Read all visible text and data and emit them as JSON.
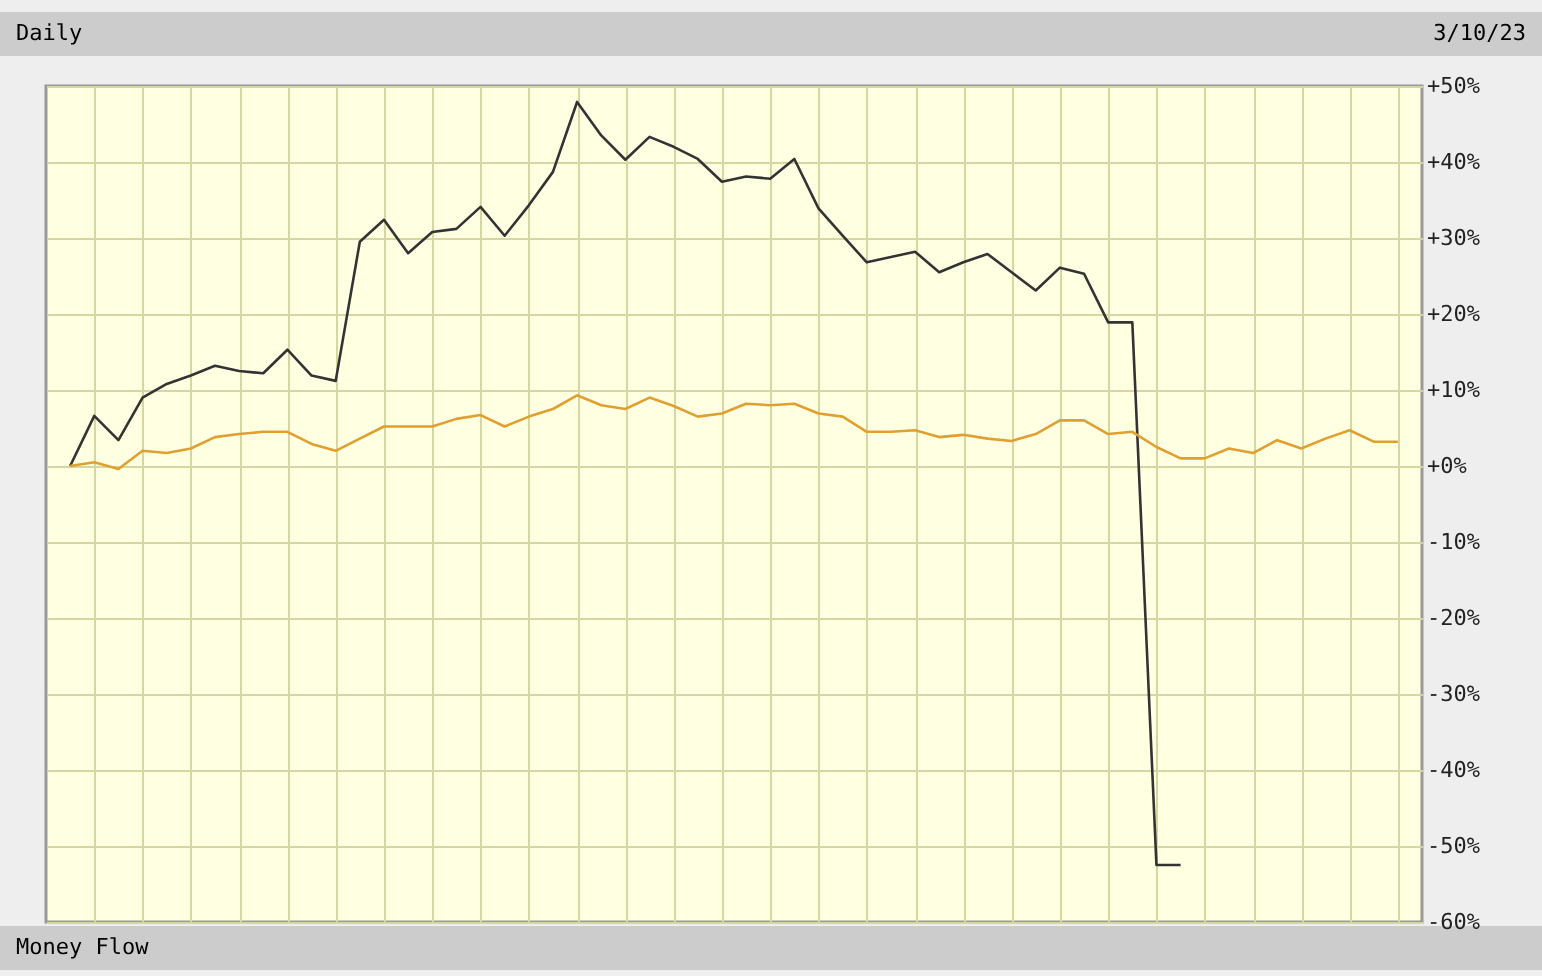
{
  "chart_data": {
    "type": "line",
    "title": "Daily",
    "annotations": [
      "3/10/23",
      "Money Flow"
    ],
    "categories": [
      null,
      null,
      null,
      null,
      null,
      null,
      null,
      null,
      null,
      null,
      null,
      null,
      null,
      null,
      null,
      null,
      null,
      null,
      null,
      null,
      null,
      null,
      null,
      null,
      null,
      null,
      null,
      null,
      null,
      null,
      null,
      null,
      null,
      null,
      null,
      null,
      null,
      null,
      null,
      null,
      null,
      null,
      null,
      null,
      null,
      null,
      null,
      null,
      null,
      null,
      null,
      null,
      null,
      null,
      null,
      null
    ],
    "series": [
      {
        "color": "#333333",
        "values": [
          0,
          6.6,
          3.4,
          9,
          10.8,
          11.9,
          13.2,
          12.5,
          12.2,
          15.3,
          11.9,
          11.2,
          29.5,
          32.4,
          28,
          30.8,
          31.2,
          34.1,
          30.3,
          34.3,
          38.7,
          47.9,
          43.5,
          40.3,
          43.3,
          42,
          40.4,
          37.4,
          38.1,
          37.8,
          40.4,
          33.9,
          30.3,
          26.8,
          27.5,
          28.2,
          25.5,
          26.8,
          27.9,
          25.5,
          23.1,
          26.1,
          25.3,
          18.9,
          18.9,
          -52.5,
          -52.5,
          null,
          null,
          null,
          null,
          null,
          null,
          null,
          null,
          null
        ]
      },
      {
        "color": "#e0a030",
        "values": [
          0,
          0.5,
          -0.4,
          2,
          1.7,
          2.3,
          3.8,
          4.2,
          4.5,
          4.5,
          2.9,
          2,
          3.6,
          5.2,
          5.2,
          5.2,
          6.2,
          6.7,
          5.2,
          6.5,
          7.5,
          9.3,
          8,
          7.5,
          9,
          7.9,
          6.5,
          6.9,
          8.2,
          8,
          8.2,
          6.9,
          6.5,
          4.5,
          4.5,
          4.7,
          3.8,
          4.1,
          3.6,
          3.3,
          4.2,
          6,
          6,
          4.2,
          4.5,
          2.5,
          1,
          1,
          2.3,
          1.7,
          3.4,
          2.3,
          3.6,
          4.7,
          3.2,
          3.2
        ]
      }
    ],
    "ylim": [
      -60,
      50
    ],
    "yticks": [
      {
        "value": 50,
        "label": "+50%"
      },
      {
        "value": 40,
        "label": "+40%"
      },
      {
        "value": 30,
        "label": "+30%"
      },
      {
        "value": 20,
        "label": "+20%"
      },
      {
        "value": 10,
        "label": "+10%"
      },
      {
        "value": 0,
        "label": "+0%"
      },
      {
        "value": -10,
        "label": "-10%"
      },
      {
        "value": -20,
        "label": "-20%"
      },
      {
        "value": -30,
        "label": "-30%"
      },
      {
        "value": -40,
        "label": "-40%"
      },
      {
        "value": -50,
        "label": "-50%"
      },
      {
        "value": -60,
        "label": "-60%"
      }
    ],
    "grid": true,
    "tick_labels": "y",
    "marker": "none",
    "line_style": "solid"
  }
}
